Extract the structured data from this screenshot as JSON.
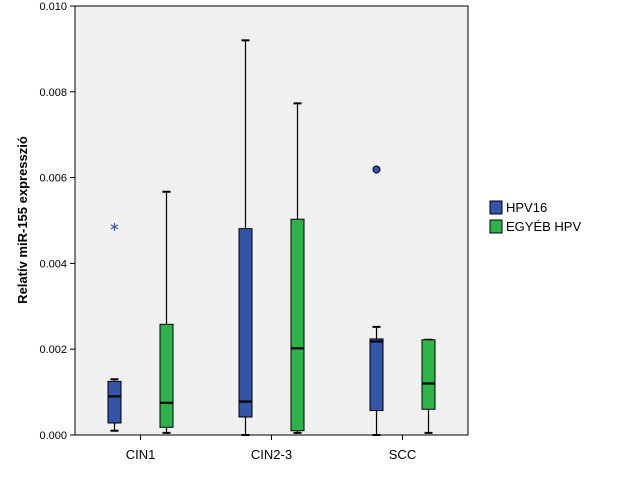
{
  "chart_data": {
    "type": "box",
    "ylabel": "Relatív miR-155 expresszió",
    "xlabel": "",
    "ylim": [
      0,
      0.01
    ],
    "yticks": [
      "0.000",
      "0.002",
      "0.004",
      "0.006",
      "0.008",
      "0.010"
    ],
    "ytick_values": [
      0,
      0.002,
      0.004,
      0.006,
      0.008,
      0.01
    ],
    "categories": [
      "CIN1",
      "CIN2-3",
      "SCC"
    ],
    "legend_position": "right",
    "series": [
      {
        "name": "HPV16",
        "color": "#3355a8",
        "boxes": [
          {
            "min": 0.0001,
            "q1": 0.00028,
            "median": 0.0009,
            "q3": 0.00125,
            "max": 0.0013,
            "outliers": [
              {
                "value": 0.00487,
                "marker": "star"
              }
            ]
          },
          {
            "min": 0.0,
            "q1": 0.00042,
            "median": 0.00078,
            "q3": 0.00481,
            "max": 0.0092,
            "outliers": []
          },
          {
            "min": 0.0,
            "q1": 0.00057,
            "median": 0.00218,
            "q3": 0.00224,
            "max": 0.00252,
            "outliers": [
              {
                "value": 0.00619,
                "marker": "circle"
              }
            ]
          }
        ]
      },
      {
        "name": "EGYÉB HPV",
        "color": "#2db34a",
        "boxes": [
          {
            "min": 5e-05,
            "q1": 0.00018,
            "median": 0.00075,
            "q3": 0.00258,
            "max": 0.00567,
            "outliers": []
          },
          {
            "min": 5e-05,
            "q1": 0.0001,
            "median": 0.00202,
            "q3": 0.00503,
            "max": 0.00773,
            "outliers": []
          },
          {
            "min": 5e-05,
            "q1": 0.0006,
            "median": 0.0012,
            "q3": 0.00222,
            "max": 0.00222,
            "outliers": []
          }
        ]
      }
    ]
  }
}
